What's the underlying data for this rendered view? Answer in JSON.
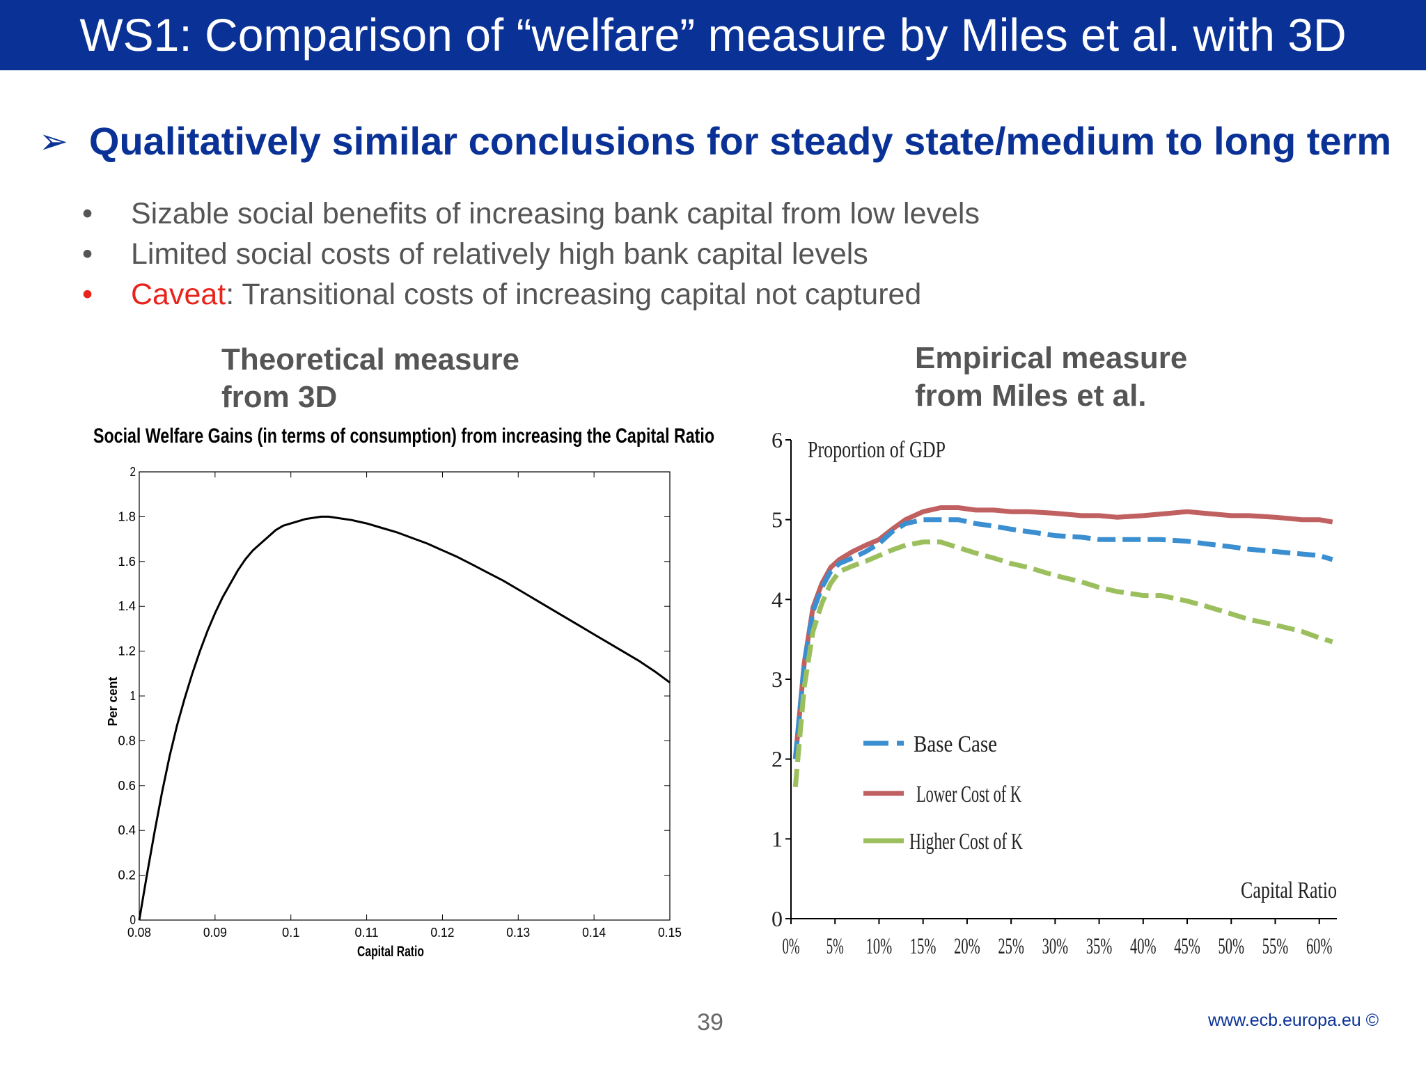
{
  "slide": {
    "title": "WS1: Comparison of “welfare” measure by Miles et al. with 3D",
    "headline": "Qualitatively similar conclusions for steady state/medium to long term",
    "bullets": [
      {
        "text": "Sizable social benefits of increasing bank capital from low levels"
      },
      {
        "text": "Limited social costs of relatively high bank capital levels"
      },
      {
        "prefix": "Caveat",
        "text": ": Transitional costs of increasing capital not captured"
      }
    ],
    "left_heading": [
      "Theoretical measure",
      "from 3D"
    ],
    "right_heading": [
      "Empirical measure",
      "from Miles et al."
    ],
    "page_number": "39",
    "footer": "www.ecb.europa.eu ©",
    "colors": {
      "title_bar": "#0a3296",
      "accent": "#0a3296",
      "caveat": "#e8231b",
      "text": "#555555"
    },
    "icons": {
      "headline_bullet": "arrowhead-icon"
    }
  },
  "chart_data": [
    {
      "type": "line",
      "title": "Social Welfare Gains (in terms of consumption) from increasing the Capital Ratio",
      "xlabel": "Capital Ratio",
      "ylabel": "Per cent",
      "xlim": [
        0.08,
        0.15
      ],
      "ylim": [
        0,
        2
      ],
      "x_ticks": [
        "0.08",
        "0.09",
        "0.1",
        "0.11",
        "0.12",
        "0.13",
        "0.14",
        "0.15"
      ],
      "y_ticks": [
        "0",
        "0.2",
        "0.4",
        "0.6",
        "0.8",
        "1",
        "1.2",
        "1.4",
        "1.6",
        "1.8",
        "2"
      ],
      "grid": false,
      "series": [
        {
          "color": "#000000",
          "x": [
            0.08,
            0.081,
            0.082,
            0.083,
            0.084,
            0.085,
            0.086,
            0.087,
            0.088,
            0.089,
            0.09,
            0.091,
            0.092,
            0.093,
            0.094,
            0.095,
            0.096,
            0.097,
            0.098,
            0.099,
            0.1,
            0.101,
            0.102,
            0.103,
            0.104,
            0.105,
            0.106,
            0.107,
            0.108,
            0.11,
            0.112,
            0.114,
            0.116,
            0.118,
            0.12,
            0.122,
            0.124,
            0.126,
            0.128,
            0.13,
            0.132,
            0.134,
            0.136,
            0.138,
            0.14,
            0.142,
            0.144,
            0.146,
            0.148,
            0.15
          ],
          "y": [
            0,
            0.2,
            0.39,
            0.57,
            0.73,
            0.87,
            0.99,
            1.1,
            1.2,
            1.29,
            1.37,
            1.44,
            1.5,
            1.56,
            1.61,
            1.65,
            1.68,
            1.71,
            1.74,
            1.76,
            1.77,
            1.78,
            1.79,
            1.795,
            1.8,
            1.8,
            1.795,
            1.79,
            1.785,
            1.77,
            1.75,
            1.73,
            1.705,
            1.68,
            1.65,
            1.62,
            1.585,
            1.55,
            1.515,
            1.475,
            1.435,
            1.395,
            1.355,
            1.315,
            1.275,
            1.235,
            1.195,
            1.155,
            1.11,
            1.06
          ]
        }
      ]
    },
    {
      "type": "line",
      "title": "",
      "ylabel": "Proportion of GDP",
      "xlabel": "Capital Ratio",
      "xlim": [
        0,
        62
      ],
      "ylim": [
        0,
        6
      ],
      "x_ticks": [
        "0%",
        "5%",
        "10%",
        "15%",
        "20%",
        "25%",
        "30%",
        "35%",
        "40%",
        "45%",
        "50%",
        "55%",
        "60%"
      ],
      "y_ticks": [
        "0",
        "1",
        "2",
        "3",
        "4",
        "5",
        "6"
      ],
      "grid": false,
      "legend_position": "lower-left",
      "series": [
        {
          "name": "Base Case",
          "style": "dashed",
          "color": "#3b8fd0",
          "x": [
            0.5,
            1.5,
            2.5,
            3.5,
            4.5,
            5.5,
            7,
            8.5,
            10,
            11.5,
            13,
            15,
            17,
            19,
            21,
            23,
            25,
            27,
            30,
            33,
            35,
            37,
            40,
            42,
            45,
            47,
            50,
            52,
            55,
            58,
            60,
            61.5
          ],
          "y": [
            2.0,
            3.2,
            3.85,
            4.15,
            4.35,
            4.45,
            4.52,
            4.6,
            4.7,
            4.85,
            4.95,
            5.0,
            5.0,
            5.0,
            4.95,
            4.92,
            4.88,
            4.85,
            4.8,
            4.78,
            4.75,
            4.75,
            4.75,
            4.75,
            4.73,
            4.7,
            4.66,
            4.63,
            4.6,
            4.57,
            4.55,
            4.5
          ]
        },
        {
          "name": "Lower Cost of K",
          "style": "solid",
          "color": "#c06060",
          "x": [
            0.5,
            1.5,
            2.5,
            3.5,
            4.5,
            5.5,
            7,
            8.5,
            10,
            11.5,
            13,
            15,
            17,
            19,
            21,
            23,
            25,
            27,
            30,
            33,
            35,
            37,
            40,
            42,
            45,
            47,
            50,
            52,
            55,
            58,
            60,
            61.5
          ],
          "y": [
            2.0,
            3.2,
            3.9,
            4.2,
            4.4,
            4.5,
            4.6,
            4.68,
            4.75,
            4.88,
            5.0,
            5.1,
            5.15,
            5.15,
            5.12,
            5.12,
            5.1,
            5.1,
            5.08,
            5.05,
            5.05,
            5.03,
            5.05,
            5.07,
            5.1,
            5.08,
            5.05,
            5.05,
            5.03,
            5.0,
            5.0,
            4.97
          ]
        },
        {
          "name": "Higher Cost of K",
          "style": "dashed",
          "color": "#9cbf5e",
          "x": [
            0.5,
            1.5,
            2.5,
            3.5,
            4.5,
            5.5,
            7,
            8.5,
            10,
            11.5,
            13,
            15,
            17,
            19,
            21,
            23,
            25,
            27,
            30,
            33,
            35,
            37,
            40,
            42,
            45,
            47,
            50,
            52,
            55,
            58,
            60,
            61.5
          ],
          "y": [
            1.65,
            2.9,
            3.6,
            3.95,
            4.2,
            4.35,
            4.42,
            4.48,
            4.55,
            4.62,
            4.68,
            4.72,
            4.72,
            4.65,
            4.58,
            4.52,
            4.45,
            4.4,
            4.3,
            4.22,
            4.15,
            4.1,
            4.05,
            4.05,
            3.98,
            3.92,
            3.82,
            3.75,
            3.68,
            3.6,
            3.52,
            3.47
          ]
        }
      ]
    }
  ]
}
